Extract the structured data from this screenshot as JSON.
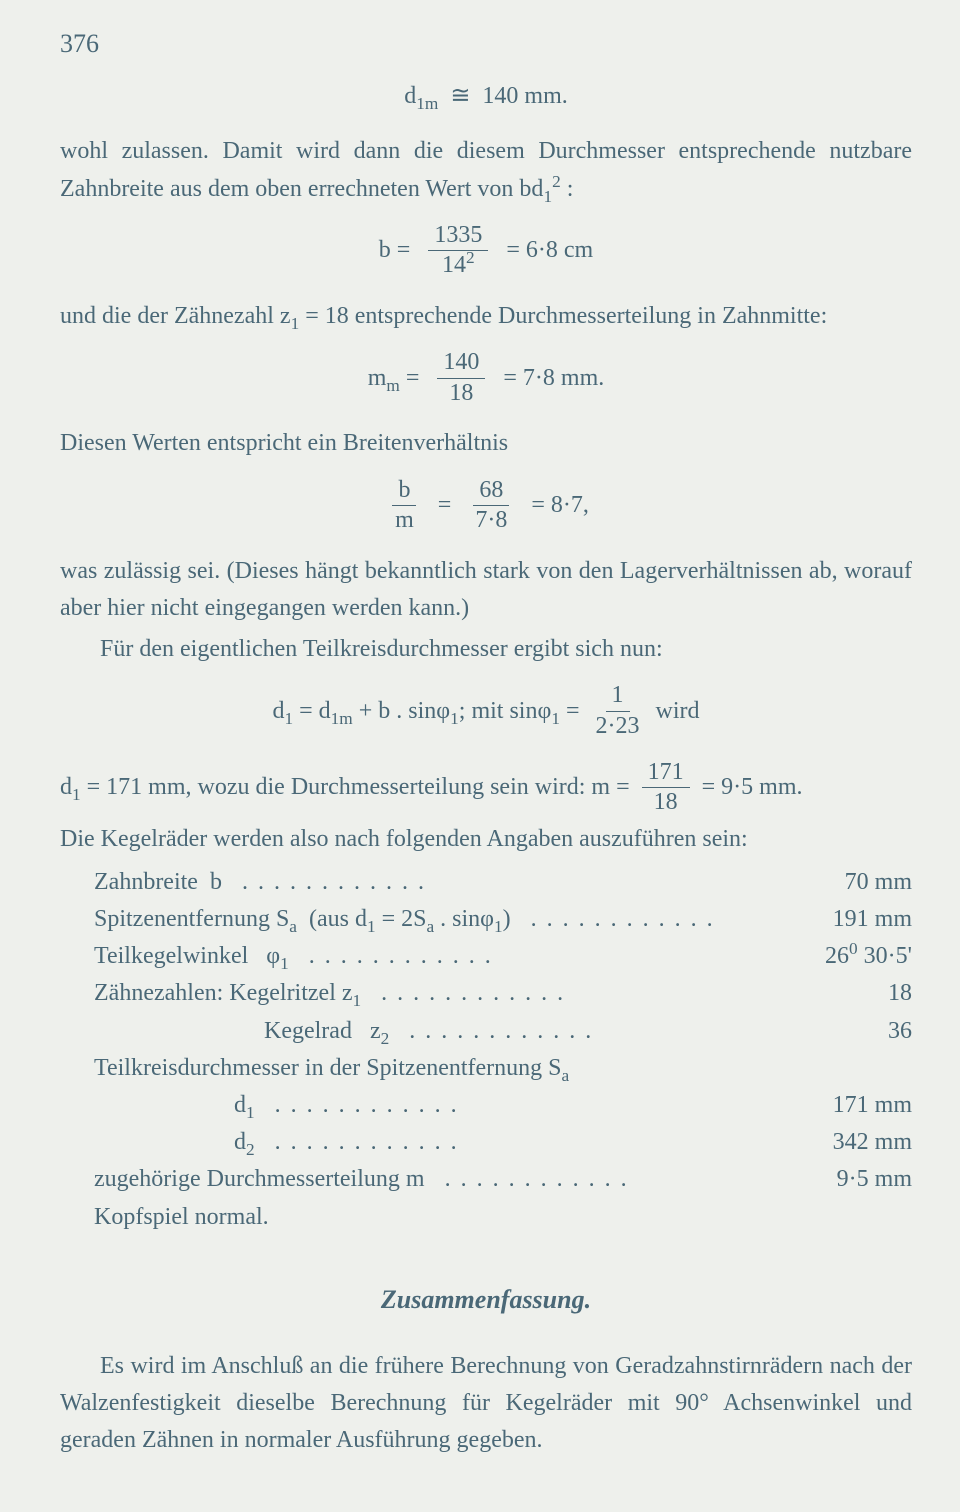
{
  "page_number": "376",
  "p1_eq": {
    "lhs": "d",
    "lhs_sub": "1m",
    "rel": "≅",
    "rhs": "140 mm."
  },
  "p1_text": "wohl zulassen. Damit wird dann die diesem Durchmesser entsprechende nutzbare Zahnbreite aus dem oben errechneten Wert von bd",
  "p1_sub": "1",
  "p1_sup": "2",
  "p1_tail": " :",
  "eq_b": {
    "lead": "b =",
    "num": "1335",
    "den": "14",
    "den_sup": "2",
    "tail": "= 6·8 cm"
  },
  "p2_a": "und die der Zähnezahl z",
  "p2_sub": "1",
  "p2_b": " = 18 entsprechende Durchmesserteilung in Zahnmitte:",
  "eq_mm": {
    "lead_a": "m",
    "lead_sub": "m",
    "lead_b": " =",
    "num": "140",
    "den": "18",
    "tail": "= 7·8 mm."
  },
  "p3": "Diesen Werten entspricht ein Breitenverhältnis",
  "eq_bm": {
    "f1_num": "b",
    "f1_den": "m",
    "mid": "=",
    "f2_num": "68",
    "f2_den": "7·8",
    "tail": "= 8·7,"
  },
  "p4": "was zulässig sei. (Dieses hängt bekanntlich stark von den Lagerverhältnissen ab, worauf aber hier nicht eingegangen werden kann.)",
  "p5": "Für den eigentlichen Teilkreisdurchmesser ergibt sich nun:",
  "eq_d1": {
    "a": "d",
    "a_sub": "1",
    "b": " = d",
    "b_sub": "1m",
    "c": " + b . sinφ",
    "c_sub": "1",
    "d": ";  mit  sinφ",
    "d_sub": "1",
    "e": " =",
    "num": "1",
    "den": "2·23",
    "tail": "  wird"
  },
  "p6_a": "d",
  "p6_a_sub": "1",
  "p6_b": " = 171 mm, wozu die Durchmesserteilung sein wird: m =",
  "p6_frac_num": "171",
  "p6_frac_den": "18",
  "p6_c": "= 9·5 mm.",
  "p7": "Die Kegelräder werden also nach folgenden Angaben auszuführen sein:",
  "results": [
    {
      "label_html": "Zahnbreite&nbsp;&nbsp;b",
      "value": "70 mm",
      "indent": 0
    },
    {
      "label_html": "Spitzenentfernung S<sub>a</sub>&nbsp; (aus d<sub>1</sub> = 2S<sub>a</sub> . sinφ<sub>1</sub>)",
      "value": "191 mm",
      "indent": 0
    },
    {
      "label_html": "Teilkegelwinkel&nbsp;&nbsp;&nbsp;φ<sub>1</sub>",
      "value": "26<sup>0</sup> 30·5'",
      "indent": 0
    },
    {
      "label_html": "Zähnezahlen: Kegelritzel z<sub>1</sub>",
      "value": "18",
      "indent": 0
    },
    {
      "label_html": "Kegelrad&nbsp;&nbsp;&nbsp;z<sub>2</sub>",
      "value": "36",
      "indent": 2
    },
    {
      "label_html": "Teilkreisdurchmesser in der Spitzenentfernung S<sub>a</sub>",
      "value": "",
      "indent": 0,
      "nodots": true
    },
    {
      "label_html": "d<sub>1</sub>",
      "value": "171 mm",
      "indent": 1
    },
    {
      "label_html": "d<sub>2</sub>",
      "value": "342 mm",
      "indent": 1
    },
    {
      "label_html": "zugehörige Durchmesserteilung m",
      "value": "9·5 mm",
      "indent": 0
    },
    {
      "label_html": "Kopfspiel normal.",
      "value": "",
      "indent": 0,
      "nodots": true
    }
  ],
  "summary_heading": "Zusammenfassung.",
  "summary_p": "Es wird im Anschluß an die frühere Berechnung von Geradzahnstirnrädern nach der Walzenfestigkeit dieselbe Berechnung für Kegelräder mit 90° Achsenwinkel und geraden Zähnen in normaler Ausführung gegeben."
}
